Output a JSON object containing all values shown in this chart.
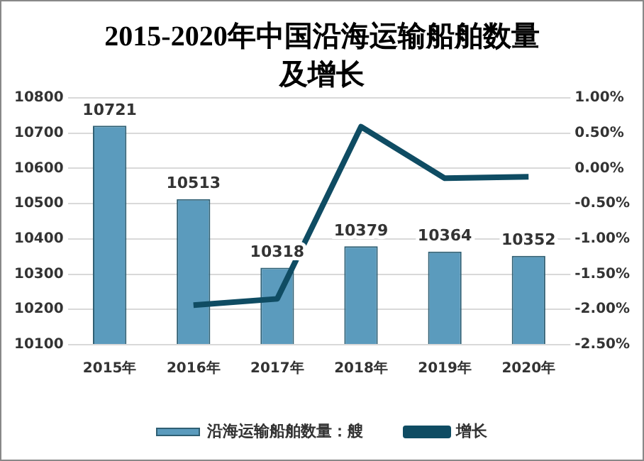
{
  "chart_data": {
    "type": "bar",
    "title": "2015-2020年中国沿海运输船舶数量及增长",
    "categories": [
      "2015年",
      "2016年",
      "2017年",
      "2018年",
      "2019年",
      "2020年"
    ],
    "series": [
      {
        "name": "沿海运输船舶数量：艘",
        "color": "#5b9bbd",
        "values": [
          10721,
          10513,
          10318,
          10379,
          10364,
          10352
        ],
        "value_labels": [
          "10721",
          "10513",
          "10318",
          "10379",
          "10364",
          "10352"
        ]
      },
      {
        "name": "增长",
        "type": "line",
        "axis": "y2",
        "color": "#0f4c63",
        "values": [
          null,
          -1.94,
          -1.85,
          0.59,
          -0.14,
          -0.12
        ]
      }
    ],
    "ylim": [
      10100,
      10800
    ],
    "yticks": [
      10100,
      10200,
      10300,
      10400,
      10500,
      10600,
      10700,
      10800
    ],
    "y2lim": [
      -2.5,
      1.0
    ],
    "y2ticks": [
      {
        "value": -2.5,
        "label": "-2.50%"
      },
      {
        "value": -2.0,
        "label": "-2.00%"
      },
      {
        "value": -1.5,
        "label": "-1.50%"
      },
      {
        "value": -1.0,
        "label": "-1.00%"
      },
      {
        "value": -0.5,
        "label": "-0.50%"
      },
      {
        "value": 0,
        "label": "0.00%"
      },
      {
        "value": 0.5,
        "label": "0.50%"
      },
      {
        "value": 1.0,
        "label": "1.00%"
      }
    ],
    "grid": "y",
    "legend": "bottom",
    "marker": "none",
    "line_style": "solid"
  }
}
